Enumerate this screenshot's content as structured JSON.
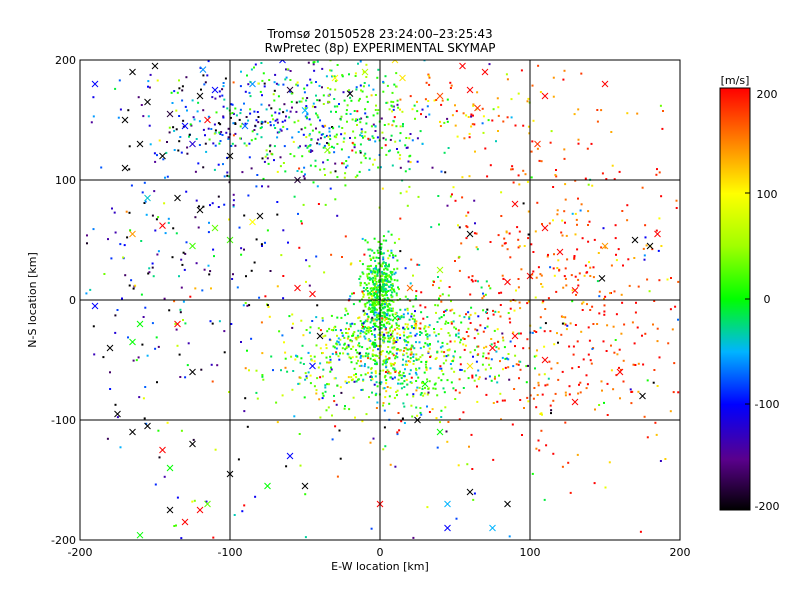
{
  "chart_data": {
    "type": "scatter",
    "title": "Tromsø 20150528 23:24:00–23:25:43",
    "subtitle": "RwPretec (8p) EXPERIMENTAL SKYMAP",
    "xlabel": "E-W location [km]",
    "ylabel": "N-S location [km]",
    "xlim": [
      -200,
      200
    ],
    "ylim": [
      -200,
      200
    ],
    "xticks": [
      "-200",
      "-100",
      "0",
      "100",
      "200"
    ],
    "yticks": [
      "200",
      "100",
      "0",
      "-100",
      "-200"
    ],
    "grid": true,
    "colorbar": {
      "label": "[m/s]",
      "range": [
        -200,
        200
      ],
      "ticks": [
        "200",
        "100",
        "0",
        "-100",
        "-200"
      ]
    },
    "clusters": [
      {
        "name": "center",
        "cx": 0,
        "cy": 5,
        "sx": 6,
        "sy": 20,
        "n": 500,
        "v": 5,
        "vs": 30
      },
      {
        "name": "south-center",
        "cx": 5,
        "cy": -45,
        "sx": 35,
        "sy": 25,
        "n": 800,
        "v": 20,
        "vs": 60
      },
      {
        "name": "north-west",
        "cx": -70,
        "cy": 150,
        "sx": 50,
        "sy": 25,
        "n": 380,
        "v": -80,
        "vs": 70
      },
      {
        "name": "north",
        "cx": -20,
        "cy": 150,
        "sx": 30,
        "sy": 30,
        "n": 220,
        "v": 20,
        "vs": 30
      },
      {
        "name": "east",
        "cx": 110,
        "cy": -20,
        "sx": 55,
        "sy": 55,
        "n": 380,
        "v": 180,
        "vs": 40
      },
      {
        "name": "far-east",
        "cx": 140,
        "cy": 60,
        "sx": 40,
        "sy": 60,
        "n": 120,
        "v": 170,
        "vs": 40
      },
      {
        "name": "north-east",
        "cx": 55,
        "cy": 160,
        "sx": 40,
        "sy": 25,
        "n": 80,
        "v": 150,
        "vs": 50
      },
      {
        "name": "west",
        "cx": -140,
        "cy": 40,
        "sx": 40,
        "sy": 80,
        "n": 220,
        "v": -140,
        "vs": 80
      },
      {
        "name": "background",
        "cx": 0,
        "cy": 0,
        "sx": 120,
        "sy": 110,
        "n": 350,
        "v": 0,
        "vs": 140
      }
    ],
    "crosses": [
      {
        "x": -190,
        "y": 180,
        "v": -100
      },
      {
        "x": -165,
        "y": 190,
        "v": -200
      },
      {
        "x": -150,
        "y": 195,
        "v": -200
      },
      {
        "x": -155,
        "y": 165,
        "v": -200
      },
      {
        "x": -170,
        "y": 150,
        "v": -200
      },
      {
        "x": -145,
        "y": 120,
        "v": -200
      },
      {
        "x": -130,
        "y": 145,
        "v": -100
      },
      {
        "x": -140,
        "y": 155,
        "v": -180
      },
      {
        "x": -120,
        "y": 170,
        "v": -200
      },
      {
        "x": -118,
        "y": 192,
        "v": -60
      },
      {
        "x": -110,
        "y": 175,
        "v": -100
      },
      {
        "x": -125,
        "y": 130,
        "v": -120
      },
      {
        "x": -170,
        "y": 110,
        "v": -200
      },
      {
        "x": -160,
        "y": 130,
        "v": -200
      },
      {
        "x": -85,
        "y": 180,
        "v": -60
      },
      {
        "x": -60,
        "y": 175,
        "v": -180
      },
      {
        "x": -50,
        "y": 158,
        "v": -50
      },
      {
        "x": -90,
        "y": 145,
        "v": -70
      },
      {
        "x": -30,
        "y": 185,
        "v": 100
      },
      {
        "x": -20,
        "y": 172,
        "v": -200
      },
      {
        "x": -10,
        "y": 190,
        "v": 60
      },
      {
        "x": -65,
        "y": 200,
        "v": -100
      },
      {
        "x": 10,
        "y": 200,
        "v": 110
      },
      {
        "x": 15,
        "y": 185,
        "v": 110
      },
      {
        "x": 55,
        "y": 195,
        "v": 200
      },
      {
        "x": 70,
        "y": 190,
        "v": 200
      },
      {
        "x": 40,
        "y": 170,
        "v": 170
      },
      {
        "x": 60,
        "y": 175,
        "v": 200
      },
      {
        "x": 65,
        "y": 160,
        "v": 180
      },
      {
        "x": 105,
        "y": 130,
        "v": 180
      },
      {
        "x": -35,
        "y": 125,
        "v": 40
      },
      {
        "x": -115,
        "y": 150,
        "v": 200
      },
      {
        "x": -100,
        "y": 120,
        "v": -200
      },
      {
        "x": 110,
        "y": 170,
        "v": 200
      },
      {
        "x": 150,
        "y": 180,
        "v": 200
      },
      {
        "x": -155,
        "y": 85,
        "v": -40
      },
      {
        "x": -135,
        "y": 85,
        "v": -200
      },
      {
        "x": -120,
        "y": 75,
        "v": -200
      },
      {
        "x": -80,
        "y": 70,
        "v": -200
      },
      {
        "x": -145,
        "y": 62,
        "v": 200
      },
      {
        "x": -165,
        "y": 55,
        "v": 140
      },
      {
        "x": -125,
        "y": 45,
        "v": 20
      },
      {
        "x": -100,
        "y": 50,
        "v": 20
      },
      {
        "x": -85,
        "y": 65,
        "v": 100
      },
      {
        "x": -110,
        "y": 60,
        "v": 30
      },
      {
        "x": 90,
        "y": 80,
        "v": 200
      },
      {
        "x": 110,
        "y": 60,
        "v": 200
      },
      {
        "x": 120,
        "y": 40,
        "v": 200
      },
      {
        "x": 150,
        "y": 45,
        "v": 140
      },
      {
        "x": 170,
        "y": 50,
        "v": -200
      },
      {
        "x": 185,
        "y": 55,
        "v": 200
      },
      {
        "x": 180,
        "y": 45,
        "v": -200
      },
      {
        "x": 148,
        "y": 18,
        "v": -200
      },
      {
        "x": 130,
        "y": 8,
        "v": 200
      },
      {
        "x": 100,
        "y": 20,
        "v": 200
      },
      {
        "x": 85,
        "y": 15,
        "v": 200
      },
      {
        "x": 60,
        "y": 55,
        "v": -200
      },
      {
        "x": 40,
        "y": 25,
        "v": 50
      },
      {
        "x": 110,
        "y": -50,
        "v": 200
      },
      {
        "x": 130,
        "y": -85,
        "v": 200
      },
      {
        "x": 160,
        "y": -60,
        "v": 200
      },
      {
        "x": 175,
        "y": -80,
        "v": -200
      },
      {
        "x": -190,
        "y": -5,
        "v": -100
      },
      {
        "x": -160,
        "y": -20,
        "v": 0
      },
      {
        "x": -165,
        "y": -35,
        "v": 0
      },
      {
        "x": -135,
        "y": -20,
        "v": 200
      },
      {
        "x": -125,
        "y": -60,
        "v": -200
      },
      {
        "x": -175,
        "y": -95,
        "v": -200
      },
      {
        "x": -165,
        "y": -110,
        "v": -200
      },
      {
        "x": -180,
        "y": -40,
        "v": -200
      },
      {
        "x": -155,
        "y": -105,
        "v": -200
      },
      {
        "x": -140,
        "y": -140,
        "v": 0
      },
      {
        "x": -145,
        "y": -125,
        "v": 200
      },
      {
        "x": -125,
        "y": -120,
        "v": -200
      },
      {
        "x": -100,
        "y": -145,
        "v": -200
      },
      {
        "x": -60,
        "y": -130,
        "v": -100
      },
      {
        "x": -75,
        "y": -155,
        "v": 0
      },
      {
        "x": -50,
        "y": -155,
        "v": -200
      },
      {
        "x": -160,
        "y": -196,
        "v": 0
      },
      {
        "x": -140,
        "y": -175,
        "v": -200
      },
      {
        "x": -130,
        "y": -185,
        "v": 200
      },
      {
        "x": -120,
        "y": -175,
        "v": 200
      },
      {
        "x": -115,
        "y": -170,
        "v": 30
      },
      {
        "x": 25,
        "y": -100,
        "v": -200
      },
      {
        "x": 40,
        "y": -110,
        "v": 0
      },
      {
        "x": 60,
        "y": -160,
        "v": -200
      },
      {
        "x": 45,
        "y": -170,
        "v": -50
      },
      {
        "x": 85,
        "y": -170,
        "v": -200
      },
      {
        "x": 75,
        "y": -190,
        "v": -50
      },
      {
        "x": 45,
        "y": -190,
        "v": -100
      },
      {
        "x": -55,
        "y": 100,
        "v": -180
      },
      {
        "x": -45,
        "y": 5,
        "v": 200
      },
      {
        "x": -55,
        "y": 10,
        "v": 200
      },
      {
        "x": -40,
        "y": -30,
        "v": -200
      },
      {
        "x": -45,
        "y": -55,
        "v": -100
      },
      {
        "x": 30,
        "y": -70,
        "v": 0
      },
      {
        "x": 60,
        "y": -55,
        "v": 110
      },
      {
        "x": 75,
        "y": -40,
        "v": 200
      },
      {
        "x": 90,
        "y": -30,
        "v": 200
      },
      {
        "x": 20,
        "y": 10,
        "v": 160
      },
      {
        "x": 10,
        "y": -15,
        "v": 0
      },
      {
        "x": 0,
        "y": -170,
        "v": 200
      }
    ]
  }
}
